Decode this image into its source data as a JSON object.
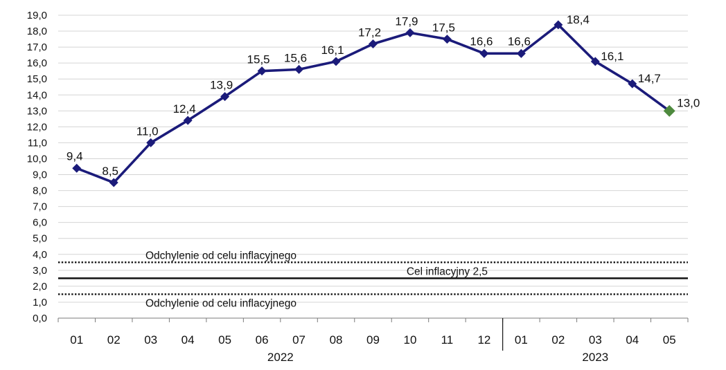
{
  "chart_data": {
    "type": "line",
    "title": "",
    "xlabel": "",
    "ylabel": "",
    "ylim": [
      0,
      19
    ],
    "y_ticks": [
      "0,0",
      "1,0",
      "2,0",
      "3,0",
      "4,0",
      "5,0",
      "6,0",
      "7,0",
      "8,0",
      "9,0",
      "10,0",
      "11,0",
      "12,0",
      "13,0",
      "14,0",
      "15,0",
      "16,0",
      "17,0",
      "18,0",
      "19,0"
    ],
    "categories": [
      "01",
      "02",
      "03",
      "04",
      "05",
      "06",
      "07",
      "08",
      "09",
      "10",
      "11",
      "12",
      "01",
      "02",
      "03",
      "04",
      "05"
    ],
    "years": [
      {
        "label": "2022",
        "from": 0,
        "to": 11
      },
      {
        "label": "2023",
        "from": 12,
        "to": 16
      }
    ],
    "grid": true,
    "series": [
      {
        "values": [
          9.4,
          8.5,
          11.0,
          12.4,
          13.9,
          15.5,
          15.6,
          16.1,
          17.2,
          17.9,
          17.5,
          16.6,
          16.6,
          18.4,
          16.1,
          14.7,
          13.0
        ],
        "labels": [
          "9,4",
          "8,5",
          "11,0",
          "12,4",
          "13,9",
          "15,5",
          "15,6",
          "16,1",
          "17,2",
          "17,9",
          "17,5",
          "16,6",
          "16,6",
          "18,4",
          "16,1",
          "14,7",
          "13,0"
        ],
        "color": "#1b1b7a",
        "last_point_color": "#4e8a3e"
      }
    ],
    "reference_lines": [
      {
        "value": 3.5,
        "style": "dotted",
        "label": "Odchylenie od celu inflacyjnego",
        "label_position": "above"
      },
      {
        "value": 2.5,
        "style": "solid",
        "label": "Cel inflacyjny 2,5",
        "label_position": "above"
      },
      {
        "value": 1.5,
        "style": "dotted",
        "label": "Odchylenie od celu inflacyjnego",
        "label_position": "below"
      }
    ]
  }
}
